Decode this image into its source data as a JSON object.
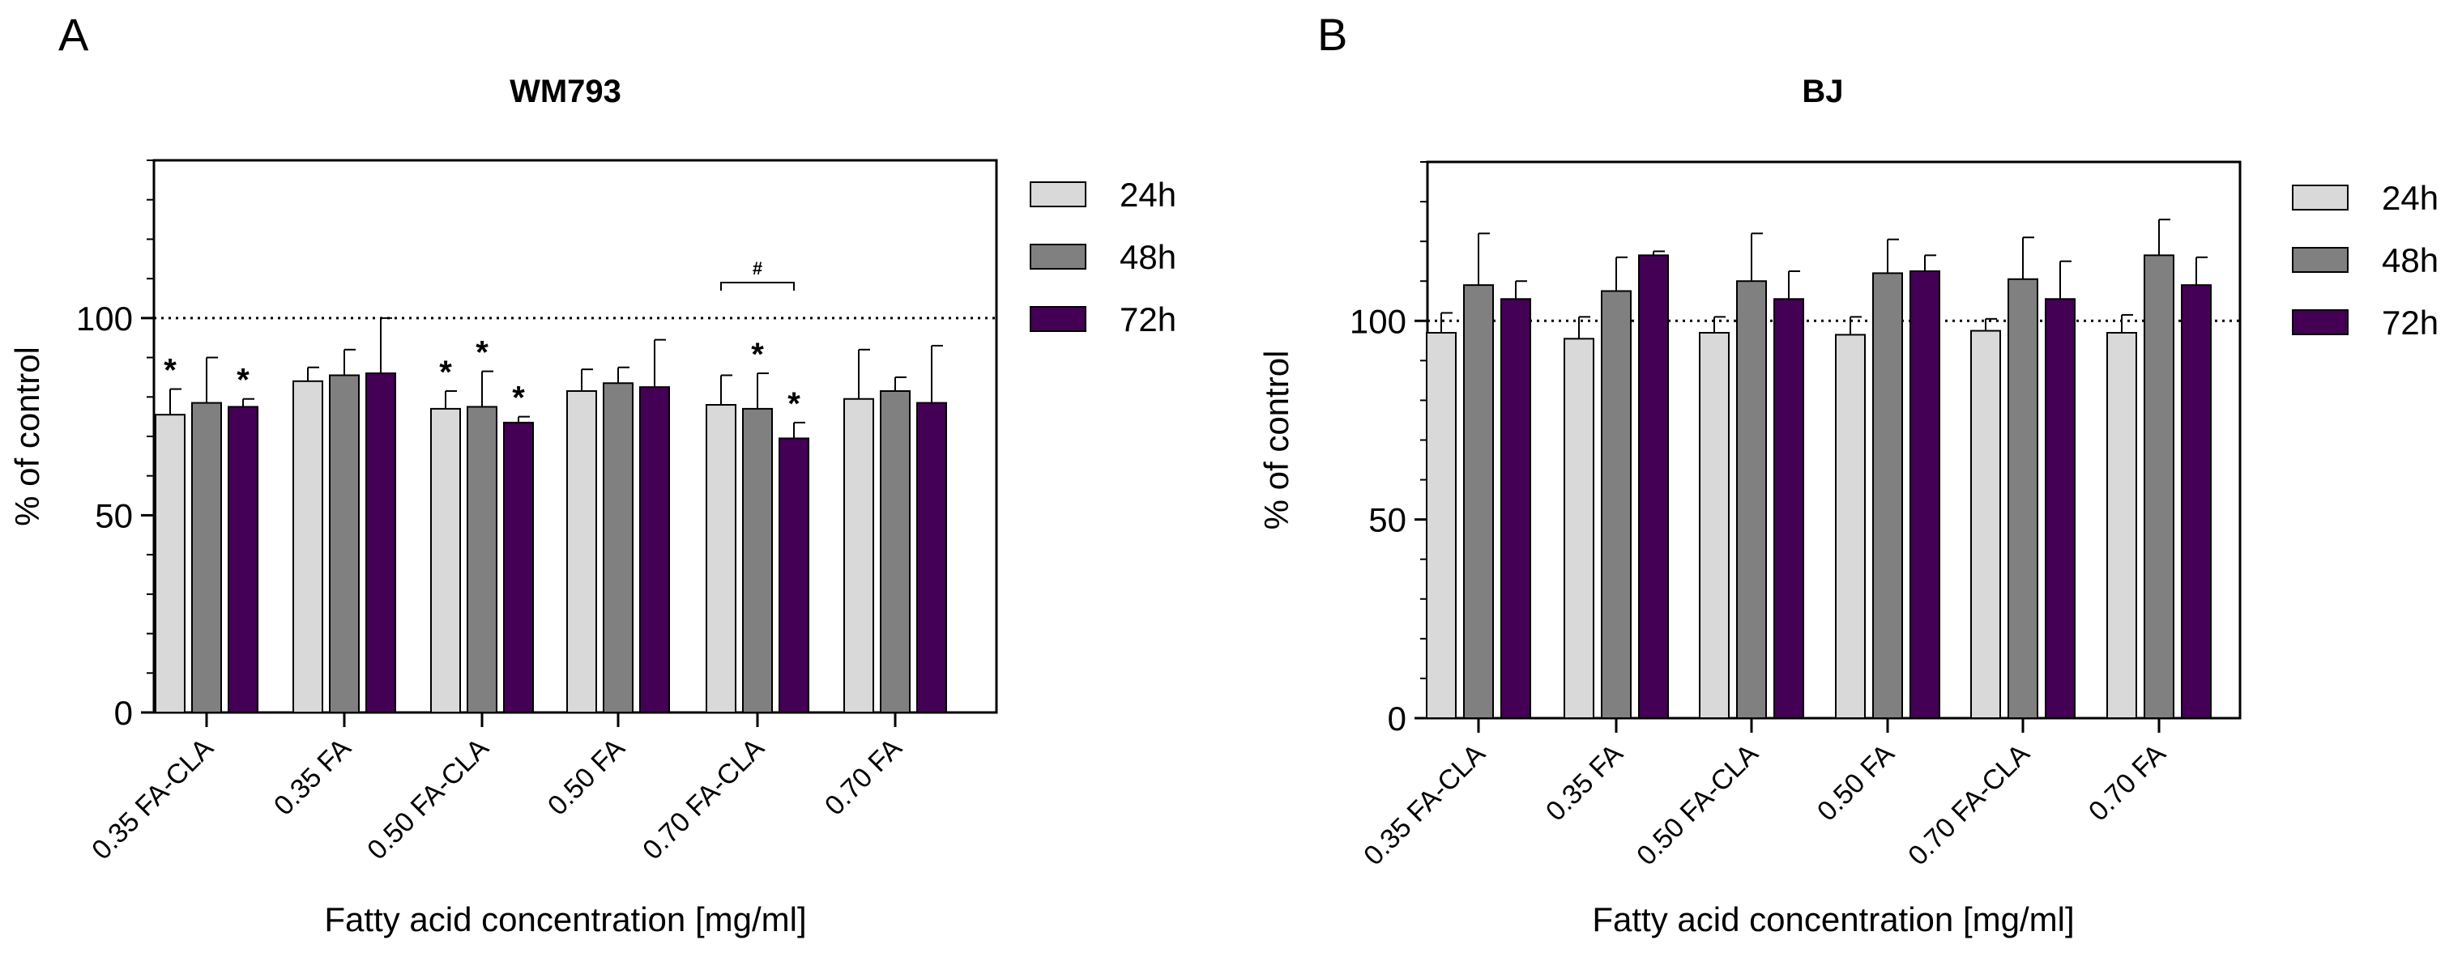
{
  "colors": {
    "24h": "#d9d9d9",
    "48h": "#808080",
    "72h": "#440055"
  },
  "chart_data": [
    {
      "type": "bar",
      "panel_label": "A",
      "title": "WM793",
      "ylabel": "% of control",
      "xlabel": "Fatty acid concentration [mg/ml]",
      "ylim": [
        0,
        140
      ],
      "yticks": [
        "0",
        "50",
        "100"
      ],
      "reference_line": 100,
      "categories": [
        "0.35 FA-CLA",
        "0.35 FA",
        "0.50 FA-CLA",
        "0.50 FA",
        "0.70 FA-CLA",
        "0.70 FA"
      ],
      "legend": [
        "24h",
        "48h",
        "72h"
      ],
      "series": [
        {
          "name": "24h",
          "values": [
            75.5,
            84,
            77,
            81.5,
            78,
            79.5
          ],
          "errors": [
            6.5,
            3.5,
            4.5,
            5.5,
            7.5,
            12.5
          ]
        },
        {
          "name": "48h",
          "values": [
            78.5,
            85.5,
            77.5,
            83.5,
            77,
            81.5
          ],
          "errors": [
            11.5,
            6.5,
            9,
            4,
            9,
            3.5
          ]
        },
        {
          "name": "72h",
          "values": [
            77.5,
            86,
            73.5,
            82.5,
            69.5,
            78.5
          ],
          "errors": [
            2,
            14,
            1.5,
            12,
            4,
            14.5
          ]
        }
      ],
      "significance": [
        {
          "category": 0,
          "series": 0,
          "mark": "*"
        },
        {
          "category": 0,
          "series": 2,
          "mark": "*"
        },
        {
          "category": 2,
          "series": 0,
          "mark": "*"
        },
        {
          "category": 2,
          "series": 1,
          "mark": "*"
        },
        {
          "category": 2,
          "series": 2,
          "mark": "*"
        },
        {
          "category": 4,
          "series": 1,
          "mark": "*"
        },
        {
          "category": 4,
          "series": 2,
          "mark": "*"
        }
      ],
      "brackets": [
        {
          "category": 4,
          "from_series": 0,
          "to_series": 2,
          "mark": "#"
        }
      ]
    },
    {
      "type": "bar",
      "panel_label": "B",
      "title": "BJ",
      "ylabel": "% of control",
      "xlabel": "Fatty acid concentration [mg/ml]",
      "ylim": [
        0,
        140
      ],
      "yticks": [
        "0",
        "50",
        "100"
      ],
      "reference_line": 100,
      "categories": [
        "0.35 FA-CLA",
        "0.35 FA",
        "0.50 FA-CLA",
        "0.50 FA",
        "0.70 FA-CLA",
        "0.70 FA"
      ],
      "legend": [
        "24h",
        "48h",
        "72h"
      ],
      "series": [
        {
          "name": "24h",
          "values": [
            97,
            95.5,
            97,
            96.5,
            97.5,
            97
          ],
          "errors": [
            5,
            5.5,
            4,
            4.5,
            3,
            4.5
          ]
        },
        {
          "name": "48h",
          "values": [
            109,
            107.5,
            110,
            112,
            110.5,
            116.5
          ],
          "errors": [
            13,
            8.5,
            12,
            8.5,
            10.5,
            9
          ]
        },
        {
          "name": "72h",
          "values": [
            105.5,
            116.5,
            105.5,
            112.5,
            105.5,
            109
          ],
          "errors": [
            4.5,
            1,
            7,
            4,
            9.5,
            7
          ]
        }
      ],
      "significance": [],
      "brackets": []
    }
  ]
}
